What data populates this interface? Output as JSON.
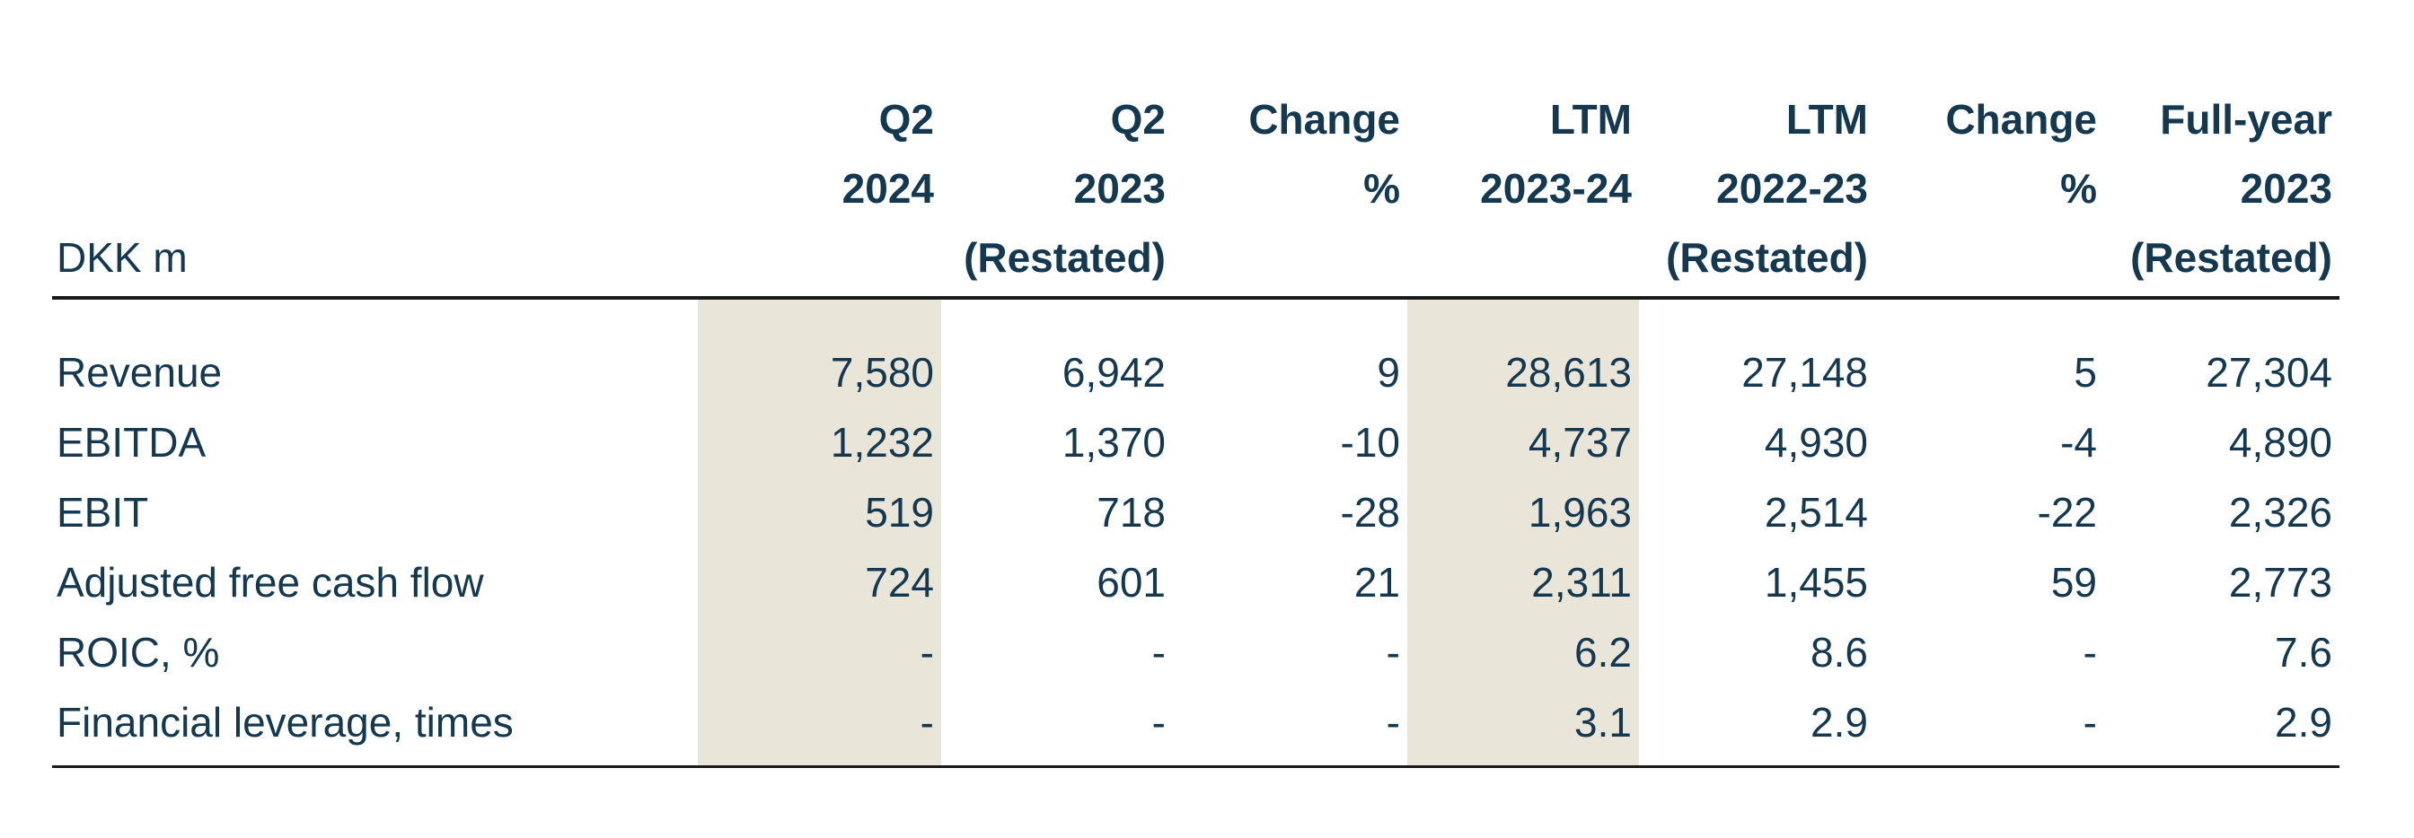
{
  "colors": {
    "text": "#133850",
    "highlight_band": "#E9E6D9",
    "rule": "#1A1A1A"
  },
  "header": {
    "unit_label": "DKK m",
    "rows": [
      [
        "",
        "Q2",
        "Q2",
        "Change",
        "LTM",
        "LTM",
        "Change",
        "Full-year"
      ],
      [
        "",
        "2024",
        "2023",
        "%",
        "2023-24",
        "2022-23",
        "%",
        "2023"
      ],
      [
        "DKK m",
        "",
        "(Restated)",
        "",
        "",
        "(Restated)",
        "",
        "(Restated)"
      ]
    ],
    "highlighted_columns": [
      "Q2 2024",
      "LTM 2023-24"
    ]
  },
  "body": {
    "rows": [
      {
        "label": "Revenue",
        "values": [
          "7,580",
          "6,942",
          "9",
          "28,613",
          "27,148",
          "5",
          "27,304"
        ]
      },
      {
        "label": "EBITDA",
        "values": [
          "1,232",
          "1,370",
          "-10",
          "4,737",
          "4,930",
          "-4",
          "4,890"
        ]
      },
      {
        "label": "EBIT",
        "values": [
          "519",
          "718",
          "-28",
          "1,963",
          "2,514",
          "-22",
          "2,326"
        ]
      },
      {
        "label": "Adjusted free cash flow",
        "values": [
          "724",
          "601",
          "21",
          "2,311",
          "1,455",
          "59",
          "2,773"
        ]
      },
      {
        "label": "ROIC, %",
        "values": [
          "-",
          "-",
          "-",
          "6.2",
          "8.6",
          "-",
          "7.6"
        ]
      },
      {
        "label": "Financial leverage, times",
        "values": [
          "-",
          "-",
          "-",
          "3.1",
          "2.9",
          "-",
          "2.9"
        ]
      }
    ]
  }
}
